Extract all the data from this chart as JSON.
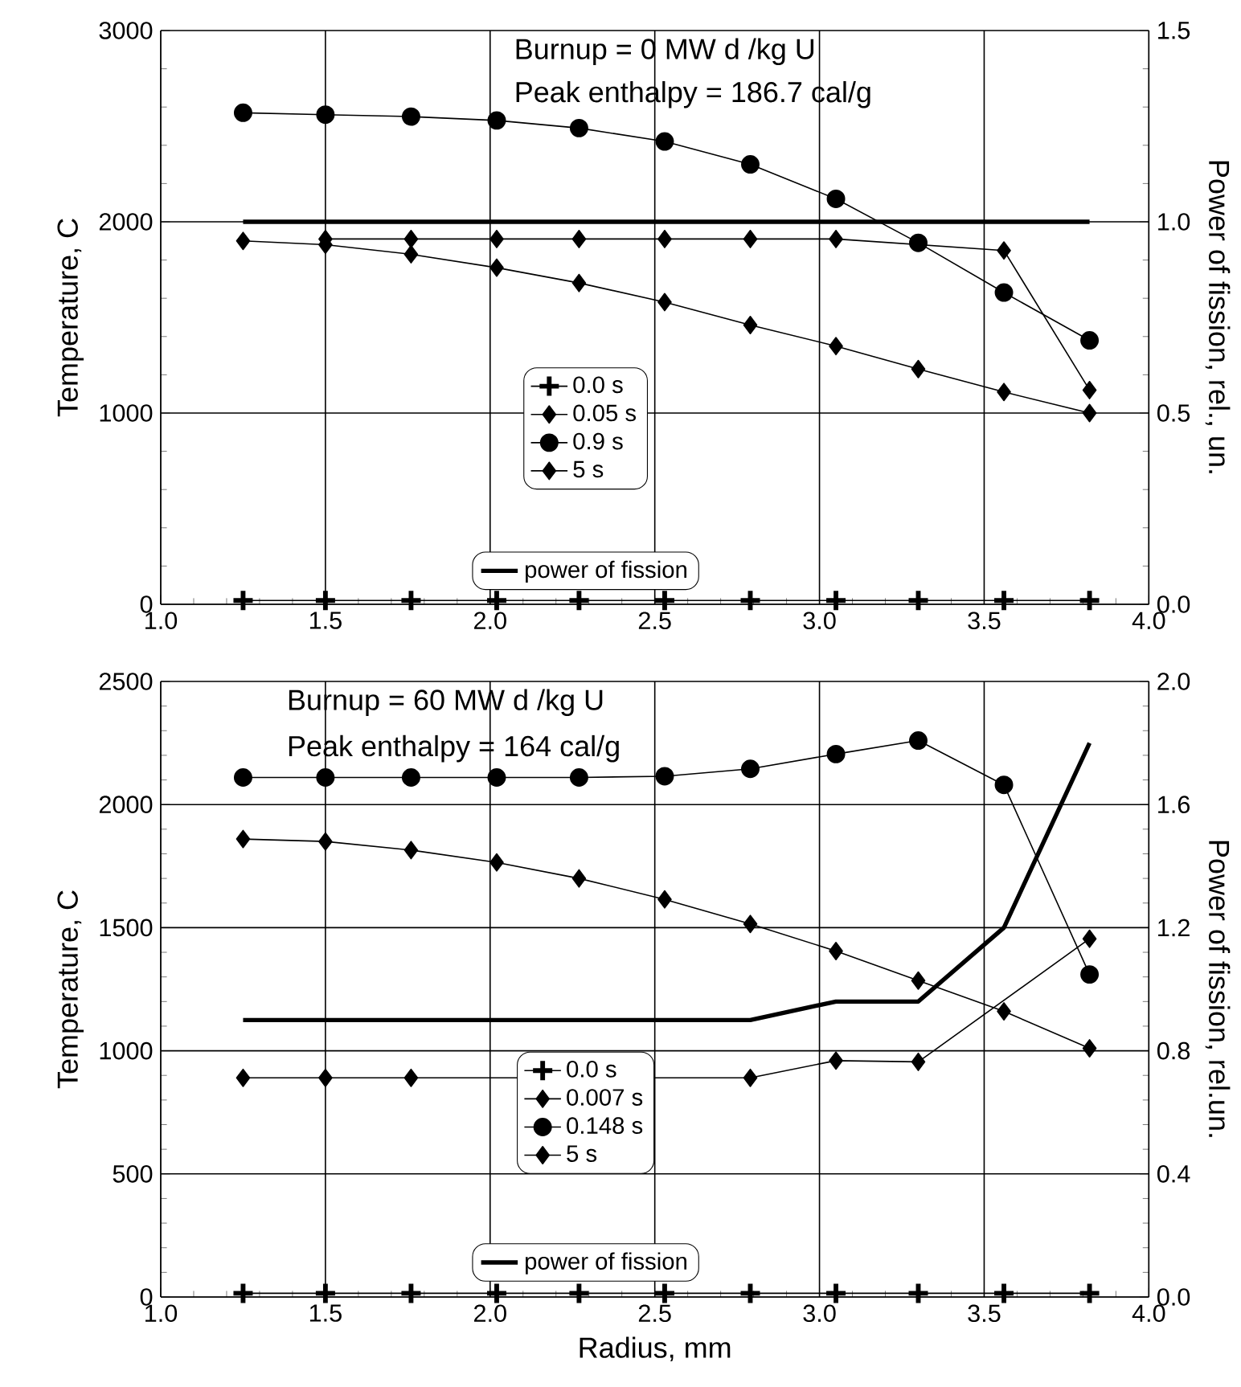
{
  "chart_data": [
    {
      "type": "line",
      "x": [
        1.25,
        1.5,
        1.76,
        2.02,
        2.27,
        2.53,
        2.79,
        3.05,
        3.3,
        3.56,
        3.82
      ],
      "series": [
        {
          "name": "0.0 s",
          "color": "#000000",
          "marker": "cross",
          "values": [
            20,
            20,
            20,
            20,
            20,
            20,
            20,
            20,
            20,
            20,
            20
          ]
        },
        {
          "name": "0.05 s",
          "color": "#000000",
          "marker": "diamond",
          "values": [
            null,
            1910,
            1910,
            1910,
            1910,
            1910,
            1910,
            1910,
            null,
            1850,
            1120
          ]
        },
        {
          "name": "0.9 s",
          "color": "#000000",
          "marker": "circle",
          "values": [
            2570,
            2560,
            2550,
            2530,
            2490,
            2420,
            2300,
            2120,
            1890,
            1630,
            1380
          ]
        },
        {
          "name": "5 s",
          "color": "#000000",
          "marker": "diamond",
          "values": [
            1900,
            1880,
            1830,
            1760,
            1680,
            1580,
            1460,
            1350,
            1230,
            1110,
            1000
          ]
        },
        {
          "name": "power of fission",
          "color": "#000000",
          "marker": "none",
          "axis": "y2",
          "values": [
            1.0,
            1.0,
            1.0,
            1.0,
            1.0,
            1.0,
            1.0,
            1.0,
            1.0,
            1.0,
            1.0
          ]
        }
      ],
      "xlim": [
        1.0,
        4.0
      ],
      "xticks": [
        {
          "value": 1.0,
          "label": "1.0"
        },
        {
          "value": 1.5,
          "label": "1.5"
        },
        {
          "value": 2.0,
          "label": "2.0"
        },
        {
          "value": 2.5,
          "label": "2.5"
        },
        {
          "value": 3.0,
          "label": "3.0"
        },
        {
          "value": 3.5,
          "label": "3.5"
        },
        {
          "value": 4.0,
          "label": "4.0"
        }
      ],
      "ylim": [
        0,
        3000
      ],
      "yticks": [
        0,
        1000,
        2000,
        3000
      ],
      "y2lim": [
        0,
        1.5
      ],
      "y2ticks": [
        {
          "value": 0,
          "label": "0.0"
        },
        {
          "value": 0.5,
          "label": "0.5"
        },
        {
          "value": 1.0,
          "label": "1.0"
        },
        {
          "value": 1.5,
          "label": "1.5"
        }
      ],
      "ylabel": "Temperature, C",
      "y2label": "Power of fission, rel., un.",
      "annotations": [
        "Burnup = 0 MW d /kg U",
        "Peak enthalpy = 186.7 cal/g"
      ],
      "grid": true,
      "legend": "bottom",
      "line_style": "solid"
    },
    {
      "type": "line",
      "x": [
        1.25,
        1.5,
        1.76,
        2.02,
        2.27,
        2.53,
        2.79,
        3.05,
        3.3,
        3.56,
        3.82
      ],
      "series": [
        {
          "name": "0.0 s",
          "color": "#000000",
          "marker": "cross",
          "values": [
            15,
            15,
            15,
            15,
            15,
            15,
            15,
            15,
            15,
            15,
            15
          ]
        },
        {
          "name": "0.007 s",
          "color": "#000000",
          "marker": "diamond",
          "values": [
            890,
            890,
            890,
            null,
            null,
            null,
            890,
            960,
            955,
            null,
            1455
          ]
        },
        {
          "name": "0.148 s",
          "color": "#000000",
          "marker": "circle",
          "values": [
            2110,
            2110,
            2110,
            2110,
            2110,
            2115,
            2145,
            2205,
            2260,
            2080,
            1310
          ]
        },
        {
          "name": "5 s",
          "color": "#000000",
          "marker": "diamond",
          "values": [
            1860,
            1850,
            1815,
            1765,
            1700,
            1615,
            1515,
            1405,
            1285,
            1160,
            1010
          ]
        },
        {
          "name": "power of fission",
          "color": "#000000",
          "marker": "none",
          "axis": "y2",
          "values": [
            0.9,
            0.9,
            0.9,
            0.9,
            0.9,
            0.9,
            0.9,
            0.96,
            0.96,
            1.2,
            1.8
          ]
        }
      ],
      "xlim": [
        1.0,
        4.0
      ],
      "xticks": [
        {
          "value": 1.0,
          "label": "1.0"
        },
        {
          "value": 1.5,
          "label": "1.5"
        },
        {
          "value": 2.0,
          "label": "2.0"
        },
        {
          "value": 2.5,
          "label": "2.5"
        },
        {
          "value": 3.0,
          "label": "3.0"
        },
        {
          "value": 3.5,
          "label": "3.5"
        },
        {
          "value": 4.0,
          "label": "4.0"
        }
      ],
      "ylim": [
        0,
        2500
      ],
      "yticks": [
        0,
        500,
        1000,
        1500,
        2000,
        2500
      ],
      "y2lim": [
        0,
        2.0
      ],
      "y2ticks": [
        {
          "value": 0,
          "label": "0.0"
        },
        {
          "value": 0.4,
          "label": "0.4"
        },
        {
          "value": 0.8,
          "label": "0.8"
        },
        {
          "value": 1.2,
          "label": "1.2"
        },
        {
          "value": 1.6,
          "label": "1.6"
        },
        {
          "value": 2.0,
          "label": "2.0"
        }
      ],
      "xlabel": "Radius, mm",
      "ylabel": "Temperature, C",
      "y2label": "Power of fission, rel.un.",
      "annotations": [
        "Burnup = 60 MW d /kg U",
        "Peak enthalpy = 164 cal/g"
      ],
      "grid": true,
      "legend": "bottom",
      "line_style": "solid"
    }
  ]
}
